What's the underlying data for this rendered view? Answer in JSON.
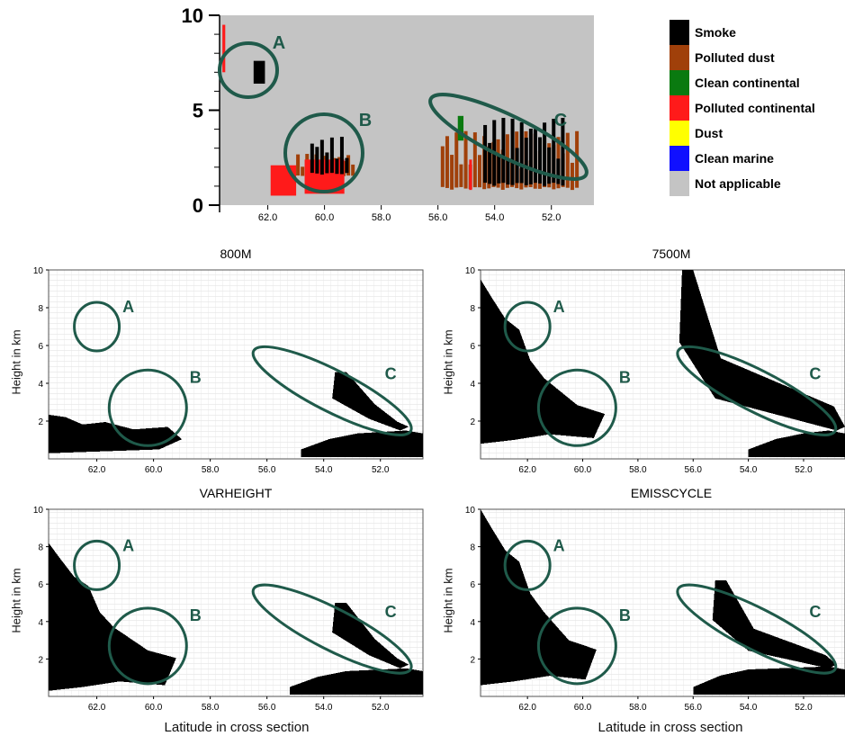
{
  "colors": {
    "smoke": "#000000",
    "polluted_dust": "#a0400a",
    "clean_continental": "#0a7a10",
    "polluted_continental": "#ff1a1a",
    "dust": "#ffff00",
    "clean_marine": "#1010ff",
    "not_applicable": "#c4c4c4",
    "circle": "#1f5a4a"
  },
  "legend": {
    "items": [
      {
        "label": "Smoke",
        "color": "#000000"
      },
      {
        "label": "Polluted dust",
        "color": "#a0400a"
      },
      {
        "label": "Clean continental",
        "color": "#0a7a10"
      },
      {
        "label": "Polluted continental",
        "color": "#ff1a1a"
      },
      {
        "label": "Dust",
        "color": "#ffff00"
      },
      {
        "label": "Clean marine",
        "color": "#1010ff"
      },
      {
        "label": "Not applicable",
        "color": "#c4c4c4"
      }
    ]
  },
  "axis_titles": {
    "y": "Height in km",
    "x": "Latitude in cross section"
  },
  "region_labels": [
    "A",
    "B",
    "C"
  ],
  "chart_data": [
    {
      "type": "heatmap",
      "panel": "top",
      "x_axis": "latitude (decreasing left to right)",
      "xlim": [
        63.7,
        50.5
      ],
      "ylim": [
        0,
        10
      ],
      "yticks": [
        "0",
        "5",
        "10"
      ],
      "xticks": [
        "62.0",
        "60.0",
        "58.0",
        "56.0",
        "54.0",
        "52.0"
      ],
      "background": "Not applicable",
      "features": [
        {
          "class": "Polluted continental",
          "lat": [
            63.6,
            63.5
          ],
          "height": [
            7.0,
            9.5
          ]
        },
        {
          "class": "Smoke",
          "lat": [
            62.5,
            62.1
          ],
          "height": [
            6.4,
            7.6
          ]
        },
        {
          "class": "Polluted continental",
          "lat": [
            61.9,
            61.0
          ],
          "height": [
            0.5,
            2.1
          ]
        },
        {
          "class": "Polluted dust",
          "lat": [
            61.0,
            58.9
          ],
          "height": [
            1.5,
            2.7
          ]
        },
        {
          "class": "Polluted continental",
          "lat": [
            60.7,
            59.3
          ],
          "height": [
            0.6,
            2.4
          ]
        },
        {
          "class": "Smoke",
          "lat": [
            60.5,
            59.1
          ],
          "height": [
            1.6,
            3.6
          ]
        },
        {
          "class": "Polluted dust",
          "lat": [
            55.9,
            51.0
          ],
          "height": [
            0.8,
            3.9
          ]
        },
        {
          "class": "Clean continental",
          "lat": [
            55.3,
            55.1
          ],
          "height": [
            3.4,
            4.7
          ]
        },
        {
          "class": "Smoke",
          "lat": [
            54.4,
            51.5
          ],
          "height": [
            1.0,
            4.6
          ]
        },
        {
          "class": "Polluted continental",
          "lat": [
            54.9,
            54.8
          ],
          "height": [
            0.8,
            2.4
          ]
        }
      ],
      "annotations": [
        {
          "label": "A",
          "lat": 62.3,
          "height": 7.0
        },
        {
          "label": "B",
          "lat": 60.0,
          "height": 2.7
        },
        {
          "label": "C",
          "lat": 53.7,
          "height": 3.6
        }
      ]
    },
    {
      "type": "heatmap",
      "title": "800M",
      "xlim": [
        63.7,
        50.5
      ],
      "ylim": [
        0,
        10
      ],
      "yticks": [
        "2",
        "4",
        "6",
        "8",
        "10"
      ],
      "xticks": [
        "62.0",
        "60.0",
        "58.0",
        "56.0",
        "54.0",
        "52.0"
      ],
      "ylabel": "Height in km",
      "features": [
        {
          "shape": "low-plume-west",
          "lat": [
            63.7,
            59.0
          ],
          "height": [
            0.3,
            2.6
          ]
        },
        {
          "shape": "tilted-plume-C",
          "lat": [
            53.6,
            51.0
          ],
          "height": [
            1.5,
            4.6
          ]
        },
        {
          "shape": "ground-layer-east",
          "lat": [
            54.8,
            50.5
          ],
          "height": [
            0.1,
            1.5
          ]
        }
      ],
      "annotations": [
        {
          "label": "A",
          "lat": 62.0,
          "height": 7.0
        },
        {
          "label": "B",
          "lat": 60.2,
          "height": 2.7
        },
        {
          "label": "C",
          "lat": 53.7,
          "height": 3.6
        }
      ]
    },
    {
      "type": "heatmap",
      "title": "7500M",
      "xlim": [
        63.7,
        50.5
      ],
      "ylim": [
        0,
        10
      ],
      "yticks": [
        "2",
        "4",
        "6",
        "8",
        "10"
      ],
      "xticks": [
        "62.0",
        "60.0",
        "58.0",
        "56.0",
        "54.0",
        "52.0"
      ],
      "ylabel": "Height in km",
      "features": [
        {
          "shape": "west-tower",
          "lat": [
            63.7,
            59.2
          ],
          "height": [
            0.8,
            9.5
          ]
        },
        {
          "shape": "tilted-plume-C",
          "lat": [
            56.4,
            50.5
          ],
          "height": [
            1.5,
            10.0
          ]
        },
        {
          "shape": "ground-layer-east",
          "lat": [
            54.0,
            50.5
          ],
          "height": [
            0.1,
            1.5
          ]
        }
      ],
      "annotations": [
        {
          "label": "A",
          "lat": 62.0,
          "height": 7.0
        },
        {
          "label": "B",
          "lat": 60.2,
          "height": 2.7
        },
        {
          "label": "C",
          "lat": 53.7,
          "height": 3.6
        }
      ]
    },
    {
      "type": "heatmap",
      "title": "VARHEIGHT",
      "xlim": [
        63.7,
        50.5
      ],
      "ylim": [
        0,
        10
      ],
      "yticks": [
        "2",
        "4",
        "6",
        "8",
        "10"
      ],
      "xticks": [
        "62.0",
        "60.0",
        "58.0",
        "56.0",
        "54.0",
        "52.0"
      ],
      "ylabel": "Height in km",
      "features": [
        {
          "shape": "west-tower",
          "lat": [
            63.7,
            59.2
          ],
          "height": [
            0.3,
            8.2
          ]
        },
        {
          "shape": "tilted-plume-C",
          "lat": [
            53.6,
            51.0
          ],
          "height": [
            1.5,
            5.0
          ]
        },
        {
          "shape": "ground-layer-east",
          "lat": [
            55.2,
            50.5
          ],
          "height": [
            0.1,
            1.5
          ]
        }
      ],
      "annotations": [
        {
          "label": "A",
          "lat": 62.0,
          "height": 7.0
        },
        {
          "label": "B",
          "lat": 60.2,
          "height": 2.7
        },
        {
          "label": "C",
          "lat": 53.7,
          "height": 3.6
        }
      ]
    },
    {
      "type": "heatmap",
      "title": "EMISSCYCLE",
      "xlim": [
        63.7,
        50.5
      ],
      "ylim": [
        0,
        10
      ],
      "yticks": [
        "2",
        "4",
        "6",
        "8",
        "10"
      ],
      "xticks": [
        "62.0",
        "60.0",
        "58.0",
        "56.0",
        "54.0",
        "52.0"
      ],
      "ylabel": "Height in km",
      "features": [
        {
          "shape": "west-tower",
          "lat": [
            63.7,
            59.5
          ],
          "height": [
            0.6,
            10.0
          ]
        },
        {
          "shape": "tilted-plume-C",
          "lat": [
            55.2,
            50.8
          ],
          "height": [
            1.5,
            6.2
          ]
        },
        {
          "shape": "ground-layer-east",
          "lat": [
            56.0,
            50.5
          ],
          "height": [
            0.1,
            1.6
          ]
        }
      ],
      "annotations": [
        {
          "label": "A",
          "lat": 62.0,
          "height": 7.0
        },
        {
          "label": "B",
          "lat": 60.2,
          "height": 2.7
        },
        {
          "label": "C",
          "lat": 53.7,
          "height": 3.6
        }
      ]
    }
  ]
}
